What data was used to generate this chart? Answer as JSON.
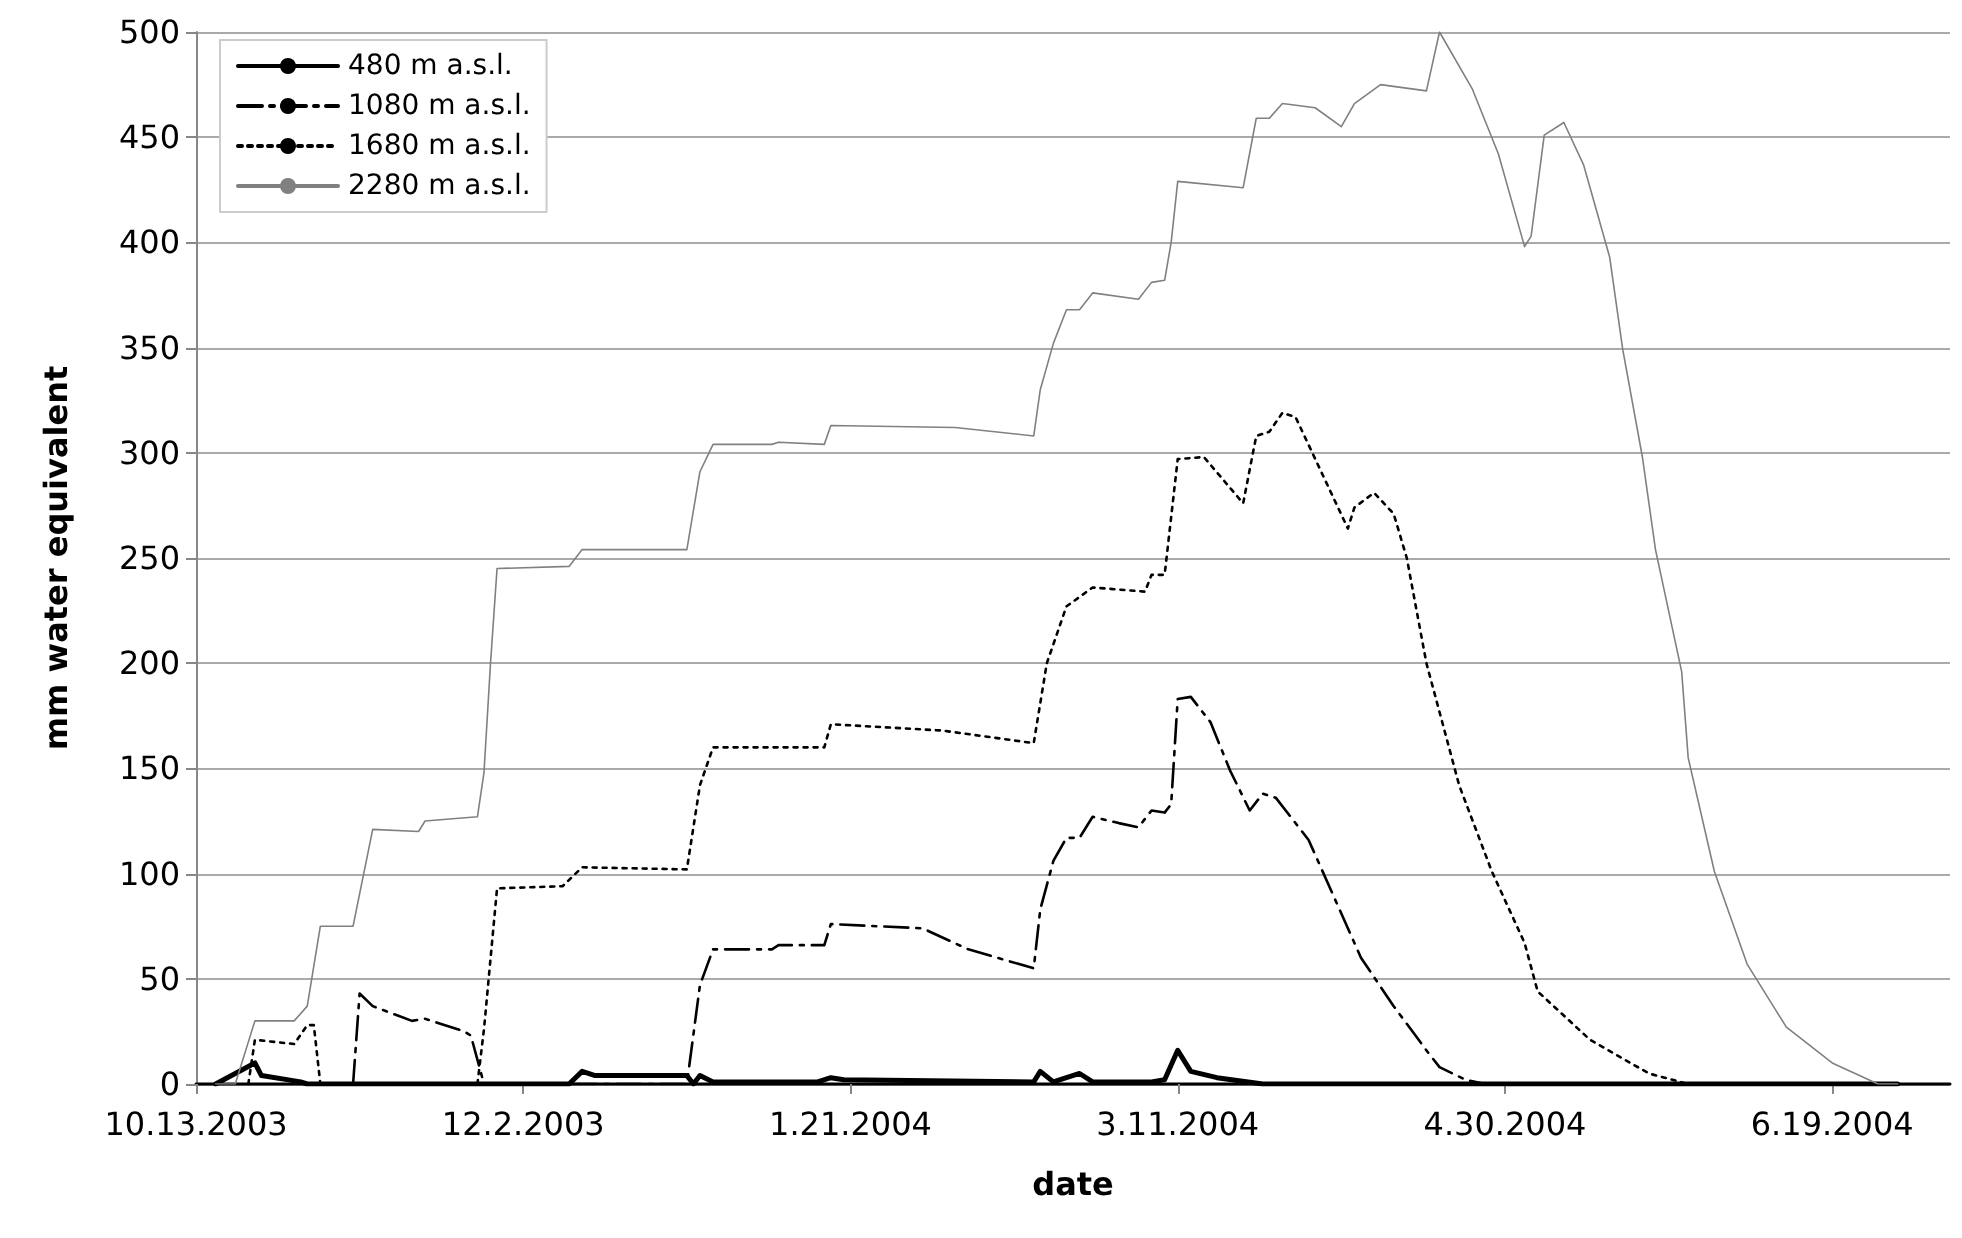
{
  "chart_data": {
    "type": "line",
    "xlabel": "date",
    "ylabel": "mm water equivalent",
    "xlim": [
      "2003-10-13",
      "2004-07-07"
    ],
    "xticks": [
      {
        "value": "2003-10-13",
        "label": "10.13.2003"
      },
      {
        "value": "2003-12-02",
        "label": "12.2.2003"
      },
      {
        "value": "2004-01-21",
        "label": "1.21.2004"
      },
      {
        "value": "2004-03-11",
        "label": "3.11.2004"
      },
      {
        "value": "2004-04-30",
        "label": "4.30.2004"
      },
      {
        "value": "2004-06-19",
        "label": "6.19.2004"
      }
    ],
    "ylim": [
      0,
      500
    ],
    "yticks": [
      0,
      50,
      100,
      150,
      200,
      250,
      300,
      350,
      400,
      450,
      500
    ],
    "grid": "y",
    "legend": "top left",
    "marker": "none",
    "series": [
      {
        "name": "480 m a.s.l.",
        "color": "#000000",
        "line_style": "solid",
        "x": [
          "2003-10-16",
          "2003-10-22",
          "2003-10-23",
          "2003-10-29",
          "2003-10-30",
          "2003-12-09",
          "2003-12-11",
          "2003-12-13",
          "2003-12-27",
          "2003-12-28",
          "2003-12-29",
          "2003-12-31",
          "2004-01-16",
          "2004-01-18",
          "2004-01-20",
          "2004-02-18",
          "2004-02-19",
          "2004-02-21",
          "2004-02-25",
          "2004-02-27",
          "2004-03-07",
          "2004-03-09",
          "2004-03-11",
          "2004-03-13",
          "2004-03-17",
          "2004-03-24",
          "2004-06-29"
        ],
        "values": [
          0,
          10,
          4,
          1,
          0,
          0,
          6,
          4,
          4,
          0,
          4,
          1,
          1,
          3,
          2,
          1,
          6,
          1,
          5,
          1,
          1,
          2,
          16,
          6,
          3,
          0,
          0
        ]
      },
      {
        "name": "1080 m a.s.l.",
        "color": "#000000",
        "line_style": "dashed",
        "x": [
          "2003-11-06",
          "2003-11-07",
          "2003-11-09",
          "2003-11-15",
          "2003-11-17",
          "2003-11-23",
          "2003-11-24",
          "2003-11-26",
          "2003-12-27",
          "2003-12-29",
          "2003-12-31",
          "2004-01-09",
          "2004-01-10",
          "2004-01-17",
          "2004-01-18",
          "2004-02-01",
          "2004-02-08",
          "2004-02-18",
          "2004-02-19",
          "2004-02-21",
          "2004-02-23",
          "2004-02-25",
          "2004-02-27",
          "2004-03-02",
          "2004-03-05",
          "2004-03-07",
          "2004-03-09",
          "2004-03-10",
          "2004-03-11",
          "2004-03-13",
          "2004-03-16",
          "2004-03-19",
          "2004-03-22",
          "2004-03-24",
          "2004-03-26",
          "2004-03-31",
          "2004-04-04",
          "2004-04-08",
          "2004-04-13",
          "2004-04-18",
          "2004-04-20",
          "2004-04-24",
          "2004-04-27",
          "2004-06-29"
        ],
        "values": [
          0,
          43,
          37,
          30,
          31,
          25,
          23,
          0,
          0,
          47,
          64,
          64,
          66,
          66,
          76,
          74,
          64,
          55,
          83,
          106,
          117,
          117,
          127,
          124,
          122,
          130,
          129,
          133,
          183,
          184,
          172,
          149,
          130,
          138,
          136,
          116,
          88,
          60,
          37,
          16,
          8,
          2,
          0,
          0
        ]
      },
      {
        "name": "1680 m a.s.l.",
        "color": "#000000",
        "line_style": "dotted",
        "x": [
          "2003-10-21",
          "2003-10-22",
          "2003-10-28",
          "2003-10-30",
          "2003-10-31",
          "2003-11-01",
          "2003-11-25",
          "2003-11-26",
          "2003-11-28",
          "2003-12-08",
          "2003-12-11",
          "2003-12-27",
          "2003-12-29",
          "2003-12-31",
          "2004-01-17",
          "2004-01-18",
          "2004-02-04",
          "2004-02-18",
          "2004-02-20",
          "2004-02-23",
          "2004-02-27",
          "2004-03-06",
          "2004-03-07",
          "2004-03-09",
          "2004-03-11",
          "2004-03-15",
          "2004-03-21",
          "2004-03-23",
          "2004-03-25",
          "2004-03-27",
          "2004-03-29",
          "2004-04-06",
          "2004-04-07",
          "2004-04-10",
          "2004-04-13",
          "2004-04-15",
          "2004-04-18",
          "2004-04-23",
          "2004-04-28",
          "2004-05-03",
          "2004-05-05",
          "2004-05-13",
          "2004-05-22",
          "2004-05-28",
          "2004-06-29"
        ],
        "values": [
          0,
          21,
          19,
          28,
          28,
          0,
          0,
          26,
          93,
          94,
          103,
          102,
          142,
          160,
          160,
          171,
          168,
          162,
          200,
          227,
          236,
          234,
          242,
          242,
          297,
          298,
          276,
          308,
          310,
          319,
          317,
          264,
          274,
          281,
          271,
          250,
          200,
          142,
          101,
          67,
          44,
          21,
          5,
          0,
          0
        ]
      },
      {
        "name": "2280 m a.s.l.",
        "color": "#808080",
        "line_style": "solid",
        "x": [
          "2003-10-16",
          "2003-10-19",
          "2003-10-22",
          "2003-10-28",
          "2003-10-30",
          "2003-11-01",
          "2003-11-06",
          "2003-11-09",
          "2003-11-16",
          "2003-11-17",
          "2003-11-25",
          "2003-11-26",
          "2003-11-27",
          "2003-11-28",
          "2003-12-09",
          "2003-12-11",
          "2003-12-27",
          "2003-12-29",
          "2003-12-31",
          "2004-01-09",
          "2004-01-10",
          "2004-01-17",
          "2004-01-18",
          "2004-02-06",
          "2004-02-18",
          "2004-02-19",
          "2004-02-21",
          "2004-02-23",
          "2004-02-25",
          "2004-02-27",
          "2004-03-05",
          "2004-03-07",
          "2004-03-09",
          "2004-03-10",
          "2004-03-11",
          "2004-03-21",
          "2004-03-23",
          "2004-03-25",
          "2004-03-27",
          "2004-04-01",
          "2004-04-05",
          "2004-04-07",
          "2004-04-11",
          "2004-04-18",
          "2004-04-20",
          "2004-04-25",
          "2004-04-29",
          "2004-05-03",
          "2004-05-04",
          "2004-05-06",
          "2004-05-09",
          "2004-05-12",
          "2004-05-16",
          "2004-05-18",
          "2004-05-21",
          "2004-05-23",
          "2004-05-27",
          "2004-05-28",
          "2004-06-01",
          "2004-06-06",
          "2004-06-12",
          "2004-06-19",
          "2004-06-26",
          "2004-06-29"
        ],
        "values": [
          0,
          0,
          30,
          30,
          37,
          75,
          75,
          121,
          120,
          125,
          127,
          148,
          200,
          245,
          246,
          254,
          254,
          291,
          304,
          304,
          305,
          304,
          313,
          312,
          308,
          330,
          352,
          368,
          368,
          376,
          373,
          381,
          382,
          400,
          429,
          426,
          459,
          459,
          466,
          464,
          455,
          466,
          475,
          472,
          500,
          473,
          442,
          398,
          403,
          451,
          457,
          437,
          393,
          349,
          298,
          254,
          196,
          155,
          101,
          57,
          27,
          10,
          0,
          0
        ]
      }
    ]
  }
}
